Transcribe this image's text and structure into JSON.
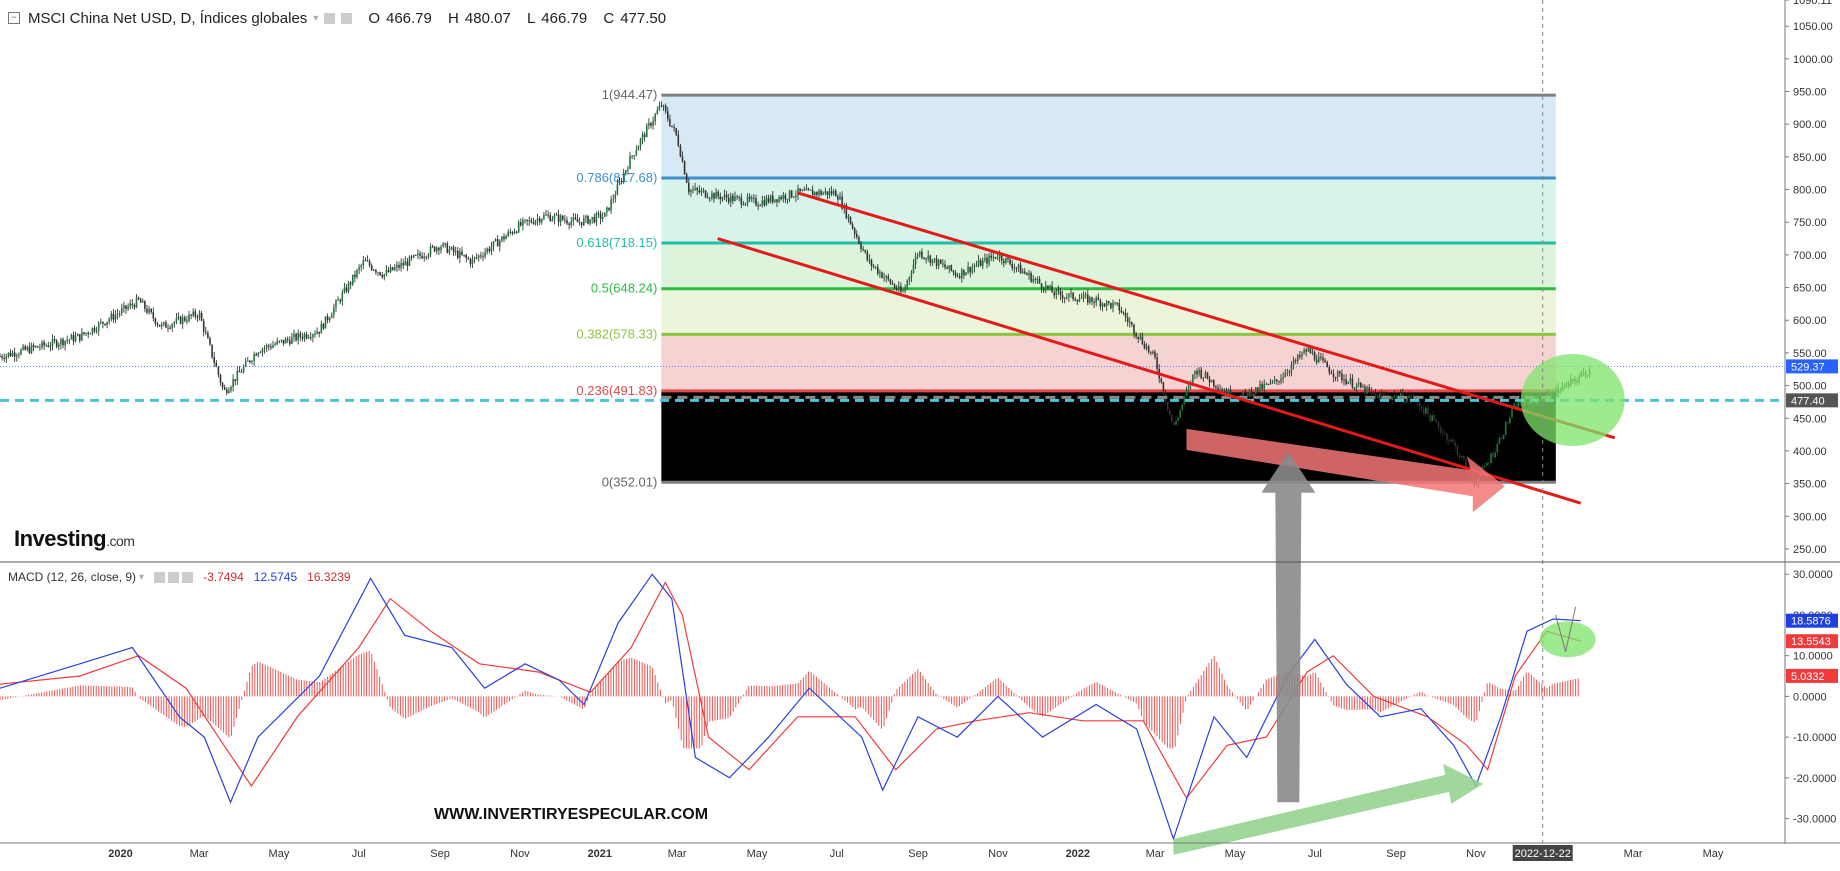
{
  "header": {
    "title": "MSCI China Net USD, D, Índices globales",
    "open_label": "O",
    "open": "466.79",
    "high_label": "H",
    "high": "480.07",
    "low_label": "L",
    "low": "466.79",
    "close_label": "C",
    "close": "477.50"
  },
  "macd_header": {
    "title": "MACD (12, 26, close, 9)",
    "v1": "-3.7494",
    "v2": "12.5745",
    "v3": "16.3239"
  },
  "logo": {
    "name": "Investing",
    "suffix": ".com"
  },
  "watermark": "WWW.INVERTIRYESPECULAR.COM",
  "colors": {
    "candle_up": "#1e7a3a",
    "candle_down": "#333333",
    "macd_line": "#2b3fe0",
    "signal_line": "#ef3b3b",
    "hist": "#ef5350",
    "channel": "#e31a1a",
    "hline": "#4fc3d6"
  },
  "chart_data": [
    {
      "type": "candlestick",
      "title": "MSCI China Net USD, D, Índices globales",
      "y_ticks": [
        "1090.11",
        "1050.00",
        "1000.00",
        "950.00",
        "900.00",
        "850.00",
        "800.00",
        "750.00",
        "700.00",
        "650.00",
        "600.00",
        "550.00",
        "500.00",
        "450.00",
        "400.00",
        "350.00",
        "300.00",
        "250.00"
      ],
      "ylim": [
        230,
        1090.11
      ],
      "x_ticks": [
        "2020",
        "Mar",
        "May",
        "Jul",
        "Sep",
        "Nov",
        "2021",
        "Mar",
        "May",
        "Jul",
        "Sep",
        "Nov",
        "2022",
        "Mar",
        "May",
        "Jul",
        "Sep",
        "Nov",
        "2022-12-22",
        "Mar",
        "May"
      ],
      "price_path": [
        [
          "2019-10-01",
          545
        ],
        [
          "2019-11-01",
          560
        ],
        [
          "2019-12-01",
          575
        ],
        [
          "2020-01-15",
          630
        ],
        [
          "2020-02-01",
          590
        ],
        [
          "2020-03-01",
          610
        ],
        [
          "2020-03-20",
          490
        ],
        [
          "2020-04-15",
          555
        ],
        [
          "2020-06-01",
          585
        ],
        [
          "2020-07-05",
          690
        ],
        [
          "2020-07-20",
          670
        ],
        [
          "2020-09-01",
          715
        ],
        [
          "2020-09-25",
          690
        ],
        [
          "2020-11-01",
          745
        ],
        [
          "2020-11-20",
          760
        ],
        [
          "2020-12-15",
          750
        ],
        [
          "2021-01-05",
          760
        ],
        [
          "2021-01-25",
          850
        ],
        [
          "2021-02-17",
          930
        ],
        [
          "2021-03-01",
          880
        ],
        [
          "2021-03-10",
          800
        ],
        [
          "2021-04-01",
          790
        ],
        [
          "2021-05-01",
          780
        ],
        [
          "2021-06-01",
          795
        ],
        [
          "2021-07-01",
          795
        ],
        [
          "2021-07-25",
          690
        ],
        [
          "2021-08-20",
          640
        ],
        [
          "2021-09-01",
          705
        ],
        [
          "2021-10-01",
          670
        ],
        [
          "2021-11-01",
          700
        ],
        [
          "2021-12-15",
          640
        ],
        [
          "2022-01-15",
          630
        ],
        [
          "2022-02-01",
          620
        ],
        [
          "2022-03-01",
          540
        ],
        [
          "2022-03-15",
          435
        ],
        [
          "2022-04-01",
          525
        ],
        [
          "2022-05-01",
          480
        ],
        [
          "2022-06-01",
          505
        ],
        [
          "2022-06-25",
          555
        ],
        [
          "2022-07-15",
          520
        ],
        [
          "2022-08-15",
          485
        ],
        [
          "2022-09-15",
          480
        ],
        [
          "2022-10-15",
          410
        ],
        [
          "2022-10-31",
          352
        ],
        [
          "2022-11-15",
          400
        ],
        [
          "2022-12-01",
          470
        ],
        [
          "2022-12-22",
          480
        ],
        [
          "2023-01-10",
          500
        ],
        [
          "2023-01-27",
          525
        ]
      ],
      "fibonacci": [
        {
          "level": "1",
          "price": 944.47,
          "label": "1(944.47)",
          "color": "#808080",
          "fill": "#e6e6e6"
        },
        {
          "level": "0.786",
          "price": 817.68,
          "label": "0.786(817.68)",
          "color": "#3c8fd0",
          "fill": "#d7e9f5"
        },
        {
          "level": "0.618",
          "price": 718.15,
          "label": "0.618(718.15)",
          "color": "#20bfa5",
          "fill": "#d8f3ea"
        },
        {
          "level": "0.5",
          "price": 648.24,
          "label": "0.5(648.24)",
          "color": "#2bb940",
          "fill": "#dcf3dc"
        },
        {
          "level": "0.382",
          "price": 578.33,
          "label": "0.382(578.33)",
          "color": "#8cc43f",
          "fill": "#eaf5da"
        },
        {
          "level": "0.236",
          "price": 491.83,
          "label": "0.236(491.83)",
          "color": "#e04a4a",
          "fill": "#f6d3d3"
        },
        {
          "level": "0",
          "price": 352.01,
          "label": "0(352.01)",
          "color": "#808080",
          "fill": ""
        }
      ],
      "fib_range": [
        "2021-02-17",
        "2023-01-01"
      ],
      "channel_upper": [
        [
          "2021-06-01",
          795
        ],
        [
          "2023-02-15",
          420
        ]
      ],
      "channel_lower": [
        [
          "2021-04-01",
          725
        ],
        [
          "2023-01-20",
          320
        ]
      ],
      "hline": {
        "price": 477.4,
        "label": "477.40",
        "color": "#4fc3d6"
      },
      "last_price": {
        "price": 529.37,
        "label": "529.37",
        "color": "#2962ff"
      },
      "cursor_date": "2022-12-22"
    },
    {
      "type": "macd",
      "title": "MACD (12, 26, close, 9)",
      "y_ticks": [
        "30.0000",
        "20.0000",
        "10.0000",
        "0.0000",
        "-10.0000",
        "-20.0000",
        "-30.0000"
      ],
      "ylim": [
        -36,
        33
      ],
      "macd": [
        [
          "2019-10-01",
          2
        ],
        [
          "2019-12-01",
          8
        ],
        [
          "2020-01-10",
          12
        ],
        [
          "2020-02-15",
          -5
        ],
        [
          "2020-03-05",
          -10
        ],
        [
          "2020-03-25",
          -26
        ],
        [
          "2020-04-15",
          -10
        ],
        [
          "2020-06-01",
          5
        ],
        [
          "2020-07-10",
          29
        ],
        [
          "2020-08-05",
          15
        ],
        [
          "2020-09-10",
          12
        ],
        [
          "2020-10-05",
          2
        ],
        [
          "2020-11-05",
          8
        ],
        [
          "2020-12-01",
          4
        ],
        [
          "2020-12-20",
          -2
        ],
        [
          "2021-01-15",
          18
        ],
        [
          "2021-02-10",
          30
        ],
        [
          "2021-02-25",
          24
        ],
        [
          "2021-03-15",
          -15
        ],
        [
          "2021-04-10",
          -20
        ],
        [
          "2021-05-10",
          -10
        ],
        [
          "2021-06-10",
          2
        ],
        [
          "2021-07-20",
          -10
        ],
        [
          "2021-08-05",
          -23
        ],
        [
          "2021-09-01",
          -5
        ],
        [
          "2021-10-01",
          -10
        ],
        [
          "2021-11-01",
          0
        ],
        [
          "2021-12-05",
          -10
        ],
        [
          "2022-01-15",
          -2
        ],
        [
          "2022-02-15",
          -8
        ],
        [
          "2022-03-15",
          -35
        ],
        [
          "2022-04-15",
          -5
        ],
        [
          "2022-05-10",
          -15
        ],
        [
          "2022-06-10",
          5
        ],
        [
          "2022-07-01",
          14
        ],
        [
          "2022-07-25",
          3
        ],
        [
          "2022-08-20",
          -5
        ],
        [
          "2022-09-20",
          -3
        ],
        [
          "2022-10-15",
          -12
        ],
        [
          "2022-11-01",
          -22
        ],
        [
          "2022-11-20",
          -5
        ],
        [
          "2022-12-10",
          16
        ],
        [
          "2022-12-30",
          19
        ],
        [
          "2023-01-20",
          18.59
        ]
      ],
      "signal": [
        [
          "2019-10-01",
          3
        ],
        [
          "2019-12-01",
          5
        ],
        [
          "2020-01-15",
          10
        ],
        [
          "2020-02-20",
          2
        ],
        [
          "2020-03-20",
          -12
        ],
        [
          "2020-04-10",
          -22
        ],
        [
          "2020-05-15",
          -5
        ],
        [
          "2020-07-01",
          12
        ],
        [
          "2020-07-25",
          24
        ],
        [
          "2020-08-25",
          16
        ],
        [
          "2020-10-01",
          8
        ],
        [
          "2020-11-15",
          6
        ],
        [
          "2020-12-25",
          1
        ],
        [
          "2021-01-25",
          12
        ],
        [
          "2021-02-20",
          28
        ],
        [
          "2021-03-05",
          20
        ],
        [
          "2021-03-25",
          -10
        ],
        [
          "2021-04-25",
          -18
        ],
        [
          "2021-06-01",
          -5
        ],
        [
          "2021-07-15",
          -5
        ],
        [
          "2021-08-15",
          -18
        ],
        [
          "2021-09-15",
          -8
        ],
        [
          "2021-10-15",
          -6
        ],
        [
          "2021-11-25",
          -4
        ],
        [
          "2022-01-05",
          -6
        ],
        [
          "2022-02-20",
          -6
        ],
        [
          "2022-03-25",
          -25
        ],
        [
          "2022-04-25",
          -12
        ],
        [
          "2022-05-25",
          -10
        ],
        [
          "2022-06-25",
          6
        ],
        [
          "2022-07-15",
          10
        ],
        [
          "2022-08-15",
          0
        ],
        [
          "2022-09-25",
          -5
        ],
        [
          "2022-10-25",
          -12
        ],
        [
          "2022-11-10",
          -18
        ],
        [
          "2022-12-01",
          5
        ],
        [
          "2022-12-25",
          16
        ],
        [
          "2023-01-20",
          13.55
        ]
      ],
      "histogram_amplitude": 8,
      "markers": [
        {
          "label": "18.5876",
          "color": "#1f3fe0"
        },
        {
          "label": "13.5543",
          "color": "#ef3b3b"
        },
        {
          "label": "5.0332",
          "color": "#ef3b3b"
        }
      ]
    }
  ]
}
